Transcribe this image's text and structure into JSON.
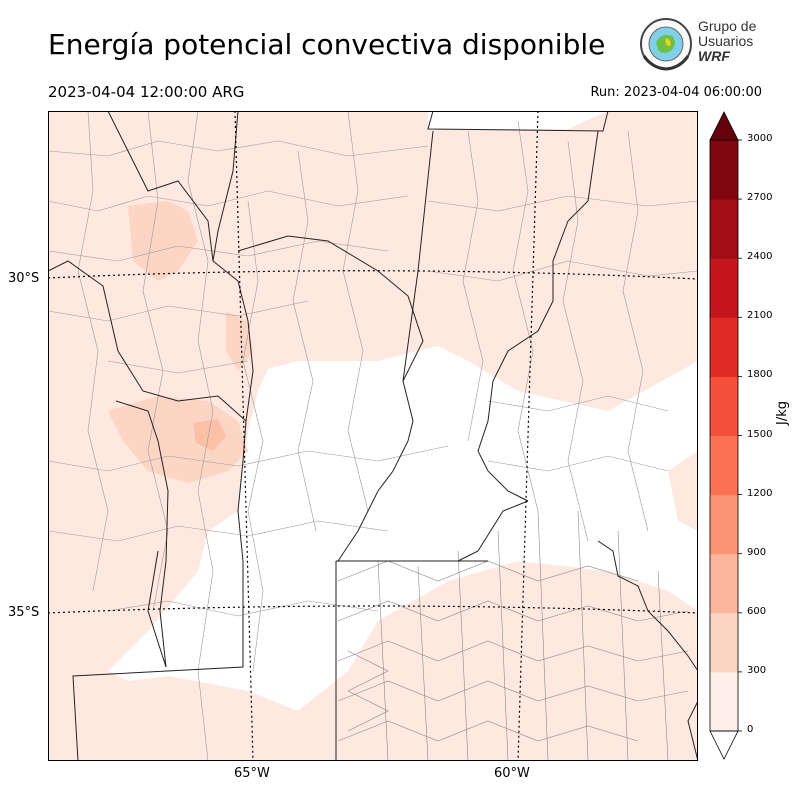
{
  "title": "Energía potencial convectiva disponible",
  "valid_time": "2023-04-04 12:00:00 ARG",
  "run_time": "Run: 2023-04-04 06:00:00",
  "logo": {
    "line1": "Grupo de",
    "line2": "Usuarios",
    "line3": "WRF"
  },
  "lat_labels": [
    "30°S",
    "35°S"
  ],
  "lon_labels": [
    "65°W",
    "60°W"
  ],
  "colorbar": {
    "unit": "J/kg",
    "ticks": [
      "0",
      "300",
      "600",
      "900",
      "1200",
      "1500",
      "1800",
      "2100",
      "2400",
      "2700",
      "3000"
    ],
    "colors": [
      "#fff0ea",
      "#fdd5c4",
      "#fcb69b",
      "#fc9474",
      "#fb7252",
      "#f44f39",
      "#de2b25",
      "#c4161b",
      "#a10e15",
      "#7f0510"
    ],
    "under_color": "#ffffff",
    "over_color": "#67000d"
  }
}
